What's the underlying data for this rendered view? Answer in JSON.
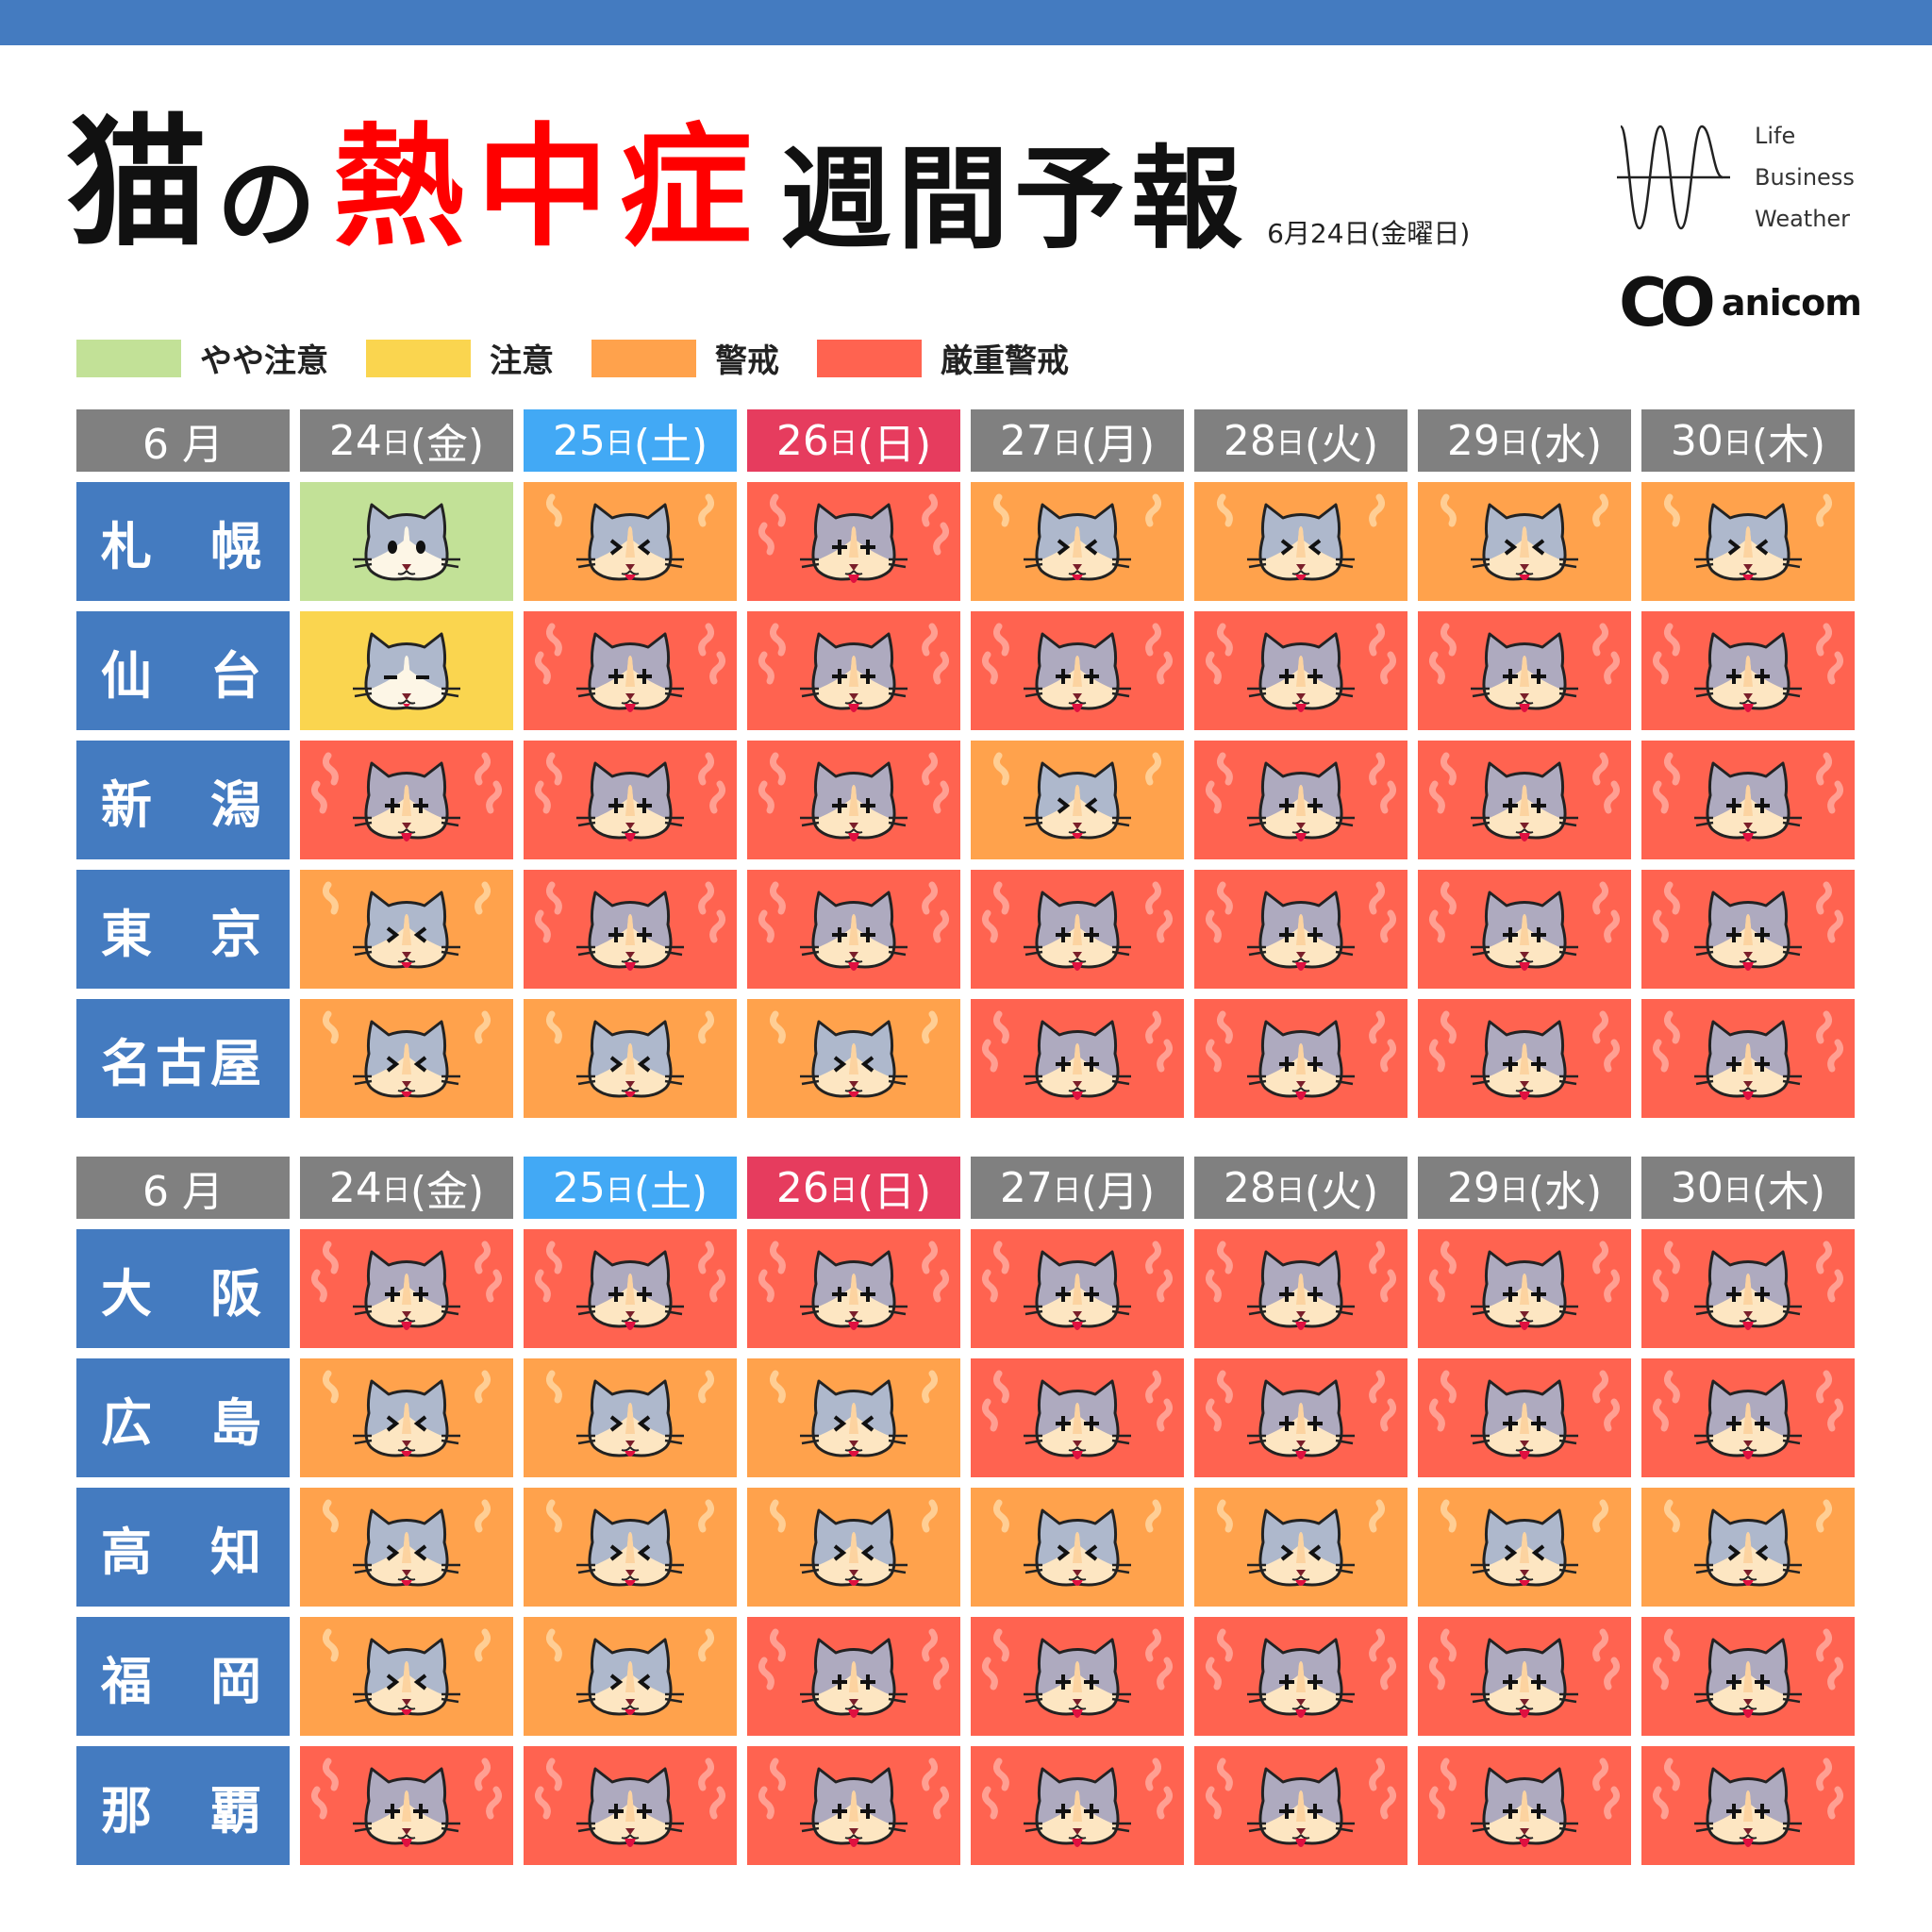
{
  "title": {
    "part1": "猫",
    "part2": "の",
    "part3": "熱中症",
    "part4": "週間予報",
    "date": "6月24日(金曜日)"
  },
  "logos": {
    "lbw": [
      "Life",
      "Business",
      "Weather"
    ],
    "anicom_mark": "CO",
    "anicom_name": "anicom"
  },
  "legend": [
    {
      "label": "やや注意",
      "color": "#c2e197"
    },
    {
      "label": "注意",
      "color": "#fad54f"
    },
    {
      "label": "警戒",
      "color": "#ffa24c"
    },
    {
      "label": "厳重警戒",
      "color": "#ff6350"
    }
  ],
  "colors": {
    "city": "#447bc0",
    "header": "#808080",
    "saturday": "#42a9f5",
    "sunday": "#e63c5e",
    "topbar": "#447bc0"
  },
  "header": {
    "month": "6 月",
    "days": [
      {
        "num": "24",
        "unit": "日",
        "dow": "(金)",
        "type": "weekday"
      },
      {
        "num": "25",
        "unit": "日",
        "dow": "(土)",
        "type": "sat"
      },
      {
        "num": "26",
        "unit": "日",
        "dow": "(日)",
        "type": "sun"
      },
      {
        "num": "27",
        "unit": "日",
        "dow": "(月)",
        "type": "weekday"
      },
      {
        "num": "28",
        "unit": "日",
        "dow": "(火)",
        "type": "weekday"
      },
      {
        "num": "29",
        "unit": "日",
        "dow": "(水)",
        "type": "weekday"
      },
      {
        "num": "30",
        "unit": "日",
        "dow": "(木)",
        "type": "weekday"
      }
    ]
  },
  "tables": [
    {
      "rows": [
        {
          "city": "札　幌",
          "levels": [
            0,
            2,
            3,
            2,
            2,
            2,
            2
          ]
        },
        {
          "city": "仙　台",
          "levels": [
            1,
            3,
            3,
            3,
            3,
            3,
            3
          ]
        },
        {
          "city": "新　潟",
          "levels": [
            3,
            3,
            3,
            2,
            3,
            3,
            3
          ]
        },
        {
          "city": "東　京",
          "levels": [
            2,
            3,
            3,
            3,
            3,
            3,
            3
          ]
        },
        {
          "city": "名古屋",
          "levels": [
            2,
            2,
            2,
            3,
            3,
            3,
            3
          ]
        }
      ]
    },
    {
      "rows": [
        {
          "city": "大　阪",
          "levels": [
            3,
            3,
            3,
            3,
            3,
            3,
            3
          ]
        },
        {
          "city": "広　島",
          "levels": [
            2,
            2,
            2,
            3,
            3,
            3,
            3
          ]
        },
        {
          "city": "高　知",
          "levels": [
            2,
            2,
            2,
            2,
            2,
            2,
            2
          ]
        },
        {
          "city": "福　岡",
          "levels": [
            2,
            2,
            3,
            3,
            3,
            3,
            3
          ]
        },
        {
          "city": "那　覇",
          "levels": [
            3,
            3,
            3,
            3,
            3,
            3,
            3
          ]
        }
      ]
    }
  ]
}
